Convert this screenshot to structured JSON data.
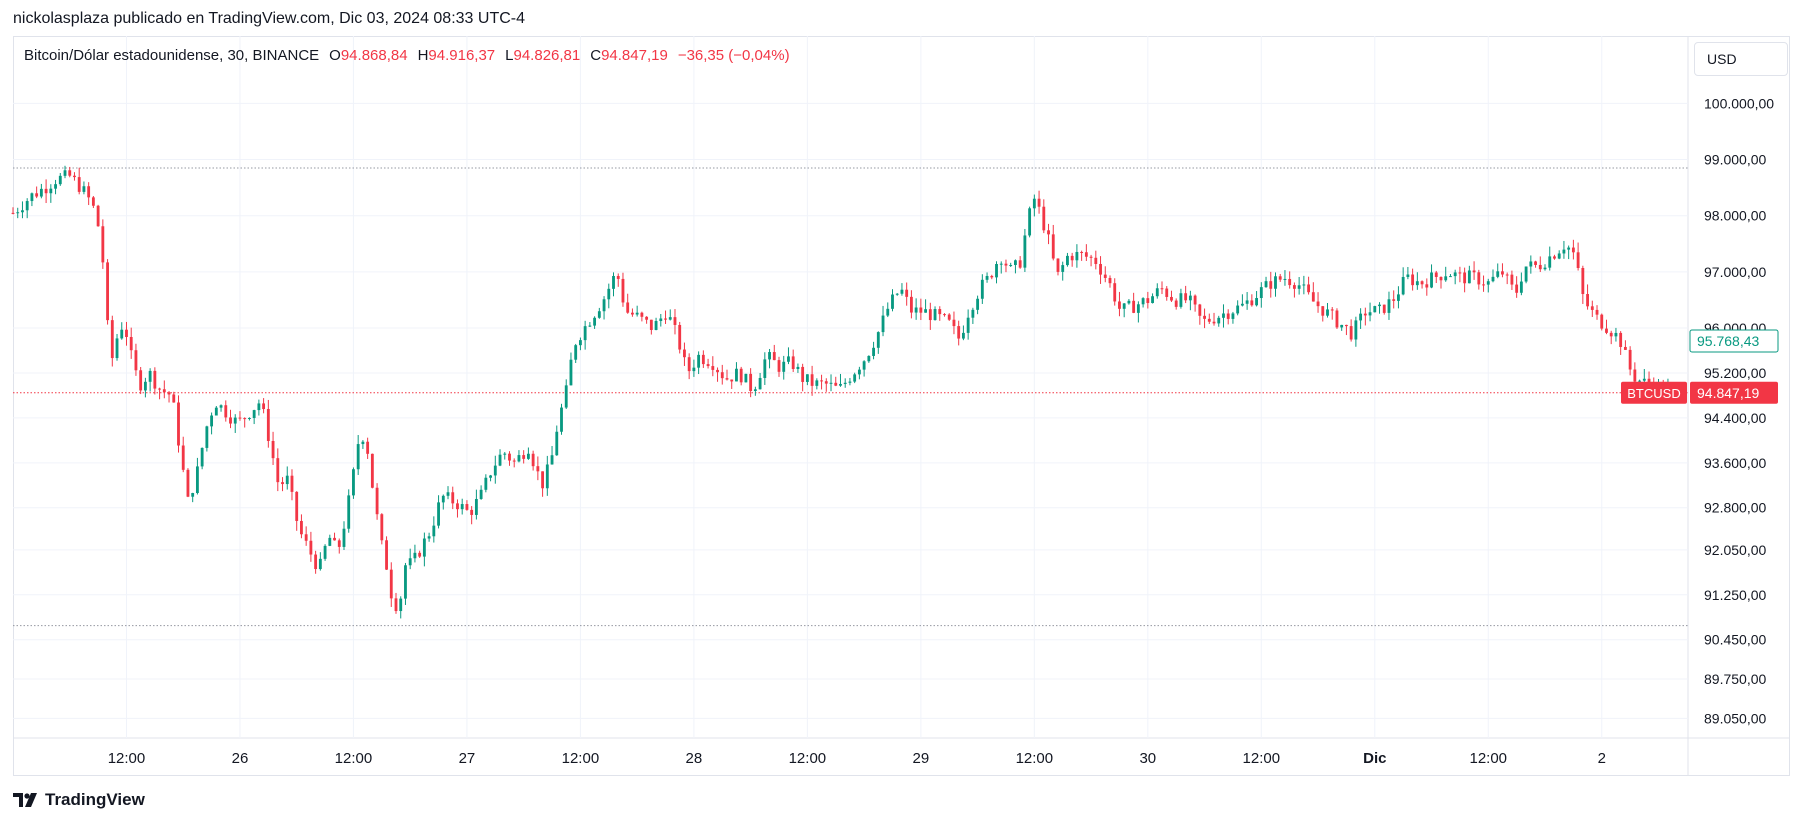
{
  "header": {
    "publisher_line": "nickolasplaza publicado en TradingView.com, Dic 03, 2024 08:33 UTC-4"
  },
  "legend": {
    "symbol": "Bitcoin/Dólar estadounidense, 30, BINANCE",
    "open_label": "O",
    "open": "94.868,84",
    "high_label": "H",
    "high": "94.916,37",
    "low_label": "L",
    "low": "94.826,81",
    "close_label": "C",
    "close": "94.847,19",
    "change": "−36,35 (−0,04%)"
  },
  "currency_button": "USD",
  "footer": {
    "brand": "TradingView"
  },
  "colors": {
    "up": "#089981",
    "down": "#f23645",
    "grid": "#f0f3fa",
    "text": "#131722"
  },
  "chart_data": {
    "type": "candlestick",
    "symbol": "BTCUSD",
    "interval": "30",
    "exchange": "BINANCE",
    "currency": "USD",
    "y_axis_ticks": [
      "100.000,00",
      "99.000,00",
      "98.000,00",
      "97.000,00",
      "96.000,00",
      "95.200,00",
      "94.400,00",
      "93.600,00",
      "92.800,00",
      "92.050,00",
      "91.250,00",
      "90.450,00",
      "89.750,00",
      "89.050,00"
    ],
    "y_axis_tick_values": [
      100000,
      99000,
      98000,
      97000,
      96000,
      95200,
      94400,
      93600,
      92800,
      92050,
      91250,
      90450,
      89750,
      89050
    ],
    "x_axis_ticks": [
      {
        "label": "12:00",
        "t": 0.5
      },
      {
        "label": "26",
        "t": 1.0
      },
      {
        "label": "12:00",
        "t": 1.5
      },
      {
        "label": "27",
        "t": 2.0
      },
      {
        "label": "12:00",
        "t": 2.5
      },
      {
        "label": "28",
        "t": 3.0
      },
      {
        "label": "12:00",
        "t": 3.5
      },
      {
        "label": "29",
        "t": 4.0
      },
      {
        "label": "12:00",
        "t": 4.5
      },
      {
        "label": "30",
        "t": 5.0
      },
      {
        "label": "12:00",
        "t": 5.5
      },
      {
        "label": "Dic",
        "t": 6.0,
        "bold": true
      },
      {
        "label": "12:00",
        "t": 6.5
      },
      {
        "label": "2",
        "t": 7.0
      }
    ],
    "x_range_days": [
      0.0,
      7.38
    ],
    "y_range": [
      88700,
      101200
    ],
    "horizontal_lines": [
      {
        "price": 98850,
        "style": "dotted",
        "color": "#9598a1"
      },
      {
        "price": 90700,
        "style": "dotted",
        "color": "#9598a1"
      }
    ],
    "price_labels": [
      {
        "price": 95768.43,
        "text": "95.768,43",
        "style": "outline",
        "color": "#089981"
      },
      {
        "price": 94847.19,
        "text": "94.847,19",
        "tag": "BTCUSD",
        "style": "filled",
        "color": "#f23645"
      }
    ],
    "last_price": 94847.19,
    "closes_approx": [
      {
        "t": 0.0,
        "c": 98050
      },
      {
        "t": 0.08,
        "c": 98350
      },
      {
        "t": 0.14,
        "c": 98500
      },
      {
        "t": 0.19,
        "c": 98650
      },
      {
        "t": 0.25,
        "c": 98700
      },
      {
        "t": 0.3,
        "c": 98500
      },
      {
        "t": 0.35,
        "c": 98200
      },
      {
        "t": 0.39,
        "c": 97600
      },
      {
        "t": 0.41,
        "c": 96200
      },
      {
        "t": 0.44,
        "c": 95400
      },
      {
        "t": 0.47,
        "c": 96100
      },
      {
        "t": 0.5,
        "c": 95900
      },
      {
        "t": 0.53,
        "c": 95300
      },
      {
        "t": 0.56,
        "c": 95000
      },
      {
        "t": 0.6,
        "c": 95200
      },
      {
        "t": 0.65,
        "c": 94900
      },
      {
        "t": 0.7,
        "c": 94800
      },
      {
        "t": 0.74,
        "c": 93700
      },
      {
        "t": 0.77,
        "c": 92900
      },
      {
        "t": 0.81,
        "c": 93400
      },
      {
        "t": 0.85,
        "c": 94200
      },
      {
        "t": 0.89,
        "c": 94700
      },
      {
        "t": 0.94,
        "c": 94500
      },
      {
        "t": 0.99,
        "c": 94300
      },
      {
        "t": 1.04,
        "c": 94500
      },
      {
        "t": 1.09,
        "c": 94700
      },
      {
        "t": 1.13,
        "c": 94000
      },
      {
        "t": 1.17,
        "c": 93200
      },
      {
        "t": 1.21,
        "c": 93300
      },
      {
        "t": 1.26,
        "c": 92400
      },
      {
        "t": 1.31,
        "c": 92000
      },
      {
        "t": 1.35,
        "c": 91700
      },
      {
        "t": 1.39,
        "c": 92300
      },
      {
        "t": 1.43,
        "c": 92000
      },
      {
        "t": 1.47,
        "c": 92700
      },
      {
        "t": 1.5,
        "c": 93400
      },
      {
        "t": 1.53,
        "c": 94200
      },
      {
        "t": 1.56,
        "c": 93900
      },
      {
        "t": 1.59,
        "c": 93000
      },
      {
        "t": 1.62,
        "c": 92200
      },
      {
        "t": 1.65,
        "c": 91700
      },
      {
        "t": 1.67,
        "c": 91200
      },
      {
        "t": 1.7,
        "c": 91000
      },
      {
        "t": 1.73,
        "c": 91800
      },
      {
        "t": 1.76,
        "c": 91800
      },
      {
        "t": 1.8,
        "c": 92100
      },
      {
        "t": 1.84,
        "c": 92400
      },
      {
        "t": 1.89,
        "c": 93000
      },
      {
        "t": 1.95,
        "c": 92900
      },
      {
        "t": 2.01,
        "c": 92700
      },
      {
        "t": 2.06,
        "c": 93000
      },
      {
        "t": 2.11,
        "c": 93500
      },
      {
        "t": 2.16,
        "c": 93800
      },
      {
        "t": 2.21,
        "c": 93600
      },
      {
        "t": 2.27,
        "c": 93900
      },
      {
        "t": 2.33,
        "c": 93200
      },
      {
        "t": 2.37,
        "c": 93600
      },
      {
        "t": 2.4,
        "c": 94300
      },
      {
        "t": 2.44,
        "c": 94900
      },
      {
        "t": 2.47,
        "c": 95700
      },
      {
        "t": 2.5,
        "c": 95900
      },
      {
        "t": 2.55,
        "c": 96200
      },
      {
        "t": 2.6,
        "c": 96500
      },
      {
        "t": 2.66,
        "c": 97000
      },
      {
        "t": 2.7,
        "c": 96300
      },
      {
        "t": 2.75,
        "c": 96200
      },
      {
        "t": 2.82,
        "c": 96000
      },
      {
        "t": 2.88,
        "c": 96300
      },
      {
        "t": 2.93,
        "c": 95800
      },
      {
        "t": 2.97,
        "c": 95200
      },
      {
        "t": 3.02,
        "c": 95500
      },
      {
        "t": 3.08,
        "c": 95400
      },
      {
        "t": 3.14,
        "c": 95100
      },
      {
        "t": 3.2,
        "c": 95200
      },
      {
        "t": 3.26,
        "c": 94900
      },
      {
        "t": 3.32,
        "c": 95500
      },
      {
        "t": 3.38,
        "c": 95300
      },
      {
        "t": 3.43,
        "c": 95400
      },
      {
        "t": 3.48,
        "c": 95100
      },
      {
        "t": 3.53,
        "c": 95000
      },
      {
        "t": 3.58,
        "c": 95000
      },
      {
        "t": 3.64,
        "c": 94900
      },
      {
        "t": 3.7,
        "c": 95200
      },
      {
        "t": 3.76,
        "c": 95500
      },
      {
        "t": 3.81,
        "c": 95900
      },
      {
        "t": 3.86,
        "c": 96400
      },
      {
        "t": 3.91,
        "c": 96700
      },
      {
        "t": 3.96,
        "c": 96300
      },
      {
        "t": 4.01,
        "c": 96300
      },
      {
        "t": 4.07,
        "c": 96200
      },
      {
        "t": 4.12,
        "c": 96100
      },
      {
        "t": 4.17,
        "c": 95800
      },
      {
        "t": 4.21,
        "c": 96300
      },
      {
        "t": 4.26,
        "c": 96700
      },
      {
        "t": 4.3,
        "c": 96900
      },
      {
        "t": 4.35,
        "c": 97300
      },
      {
        "t": 4.4,
        "c": 97000
      },
      {
        "t": 4.44,
        "c": 97200
      },
      {
        "t": 4.47,
        "c": 97900
      },
      {
        "t": 4.5,
        "c": 98300
      },
      {
        "t": 4.53,
        "c": 98000
      },
      {
        "t": 4.56,
        "c": 97600
      },
      {
        "t": 4.6,
        "c": 96900
      },
      {
        "t": 4.65,
        "c": 97300
      },
      {
        "t": 4.71,
        "c": 97300
      },
      {
        "t": 4.77,
        "c": 97200
      },
      {
        "t": 4.83,
        "c": 96800
      },
      {
        "t": 4.88,
        "c": 96300
      },
      {
        "t": 4.94,
        "c": 96400
      },
      {
        "t": 5.0,
        "c": 96500
      },
      {
        "t": 5.06,
        "c": 96700
      },
      {
        "t": 5.12,
        "c": 96500
      },
      {
        "t": 5.18,
        "c": 96500
      },
      {
        "t": 5.24,
        "c": 96100
      },
      {
        "t": 5.3,
        "c": 96200
      },
      {
        "t": 5.36,
        "c": 96300
      },
      {
        "t": 5.42,
        "c": 96400
      },
      {
        "t": 5.48,
        "c": 96600
      },
      {
        "t": 5.54,
        "c": 96800
      },
      {
        "t": 5.6,
        "c": 96900
      },
      {
        "t": 5.66,
        "c": 96800
      },
      {
        "t": 5.72,
        "c": 96500
      },
      {
        "t": 5.78,
        "c": 96300
      },
      {
        "t": 5.84,
        "c": 96100
      },
      {
        "t": 5.9,
        "c": 95900
      },
      {
        "t": 5.96,
        "c": 96300
      },
      {
        "t": 6.02,
        "c": 96300
      },
      {
        "t": 6.08,
        "c": 96500
      },
      {
        "t": 6.14,
        "c": 96900
      },
      {
        "t": 6.2,
        "c": 96800
      },
      {
        "t": 6.26,
        "c": 96900
      },
      {
        "t": 6.32,
        "c": 97000
      },
      {
        "t": 6.38,
        "c": 96900
      },
      {
        "t": 6.44,
        "c": 96900
      },
      {
        "t": 6.5,
        "c": 96800
      },
      {
        "t": 6.56,
        "c": 97000
      },
      {
        "t": 6.62,
        "c": 96600
      },
      {
        "t": 6.66,
        "c": 97100
      },
      {
        "t": 6.72,
        "c": 97100
      },
      {
        "t": 6.78,
        "c": 97300
      },
      {
        "t": 6.84,
        "c": 97500
      },
      {
        "t": 6.88,
        "c": 97300
      },
      {
        "t": 6.92,
        "c": 96500
      },
      {
        "t": 6.97,
        "c": 96200
      },
      {
        "t": 7.03,
        "c": 96000
      },
      {
        "t": 7.08,
        "c": 95800
      },
      {
        "t": 7.12,
        "c": 95300
      },
      {
        "t": 7.15,
        "c": 95100
      },
      {
        "t": 7.2,
        "c": 95000
      },
      {
        "t": 7.26,
        "c": 94900
      },
      {
        "t": 7.3,
        "c": 94850
      }
    ]
  }
}
